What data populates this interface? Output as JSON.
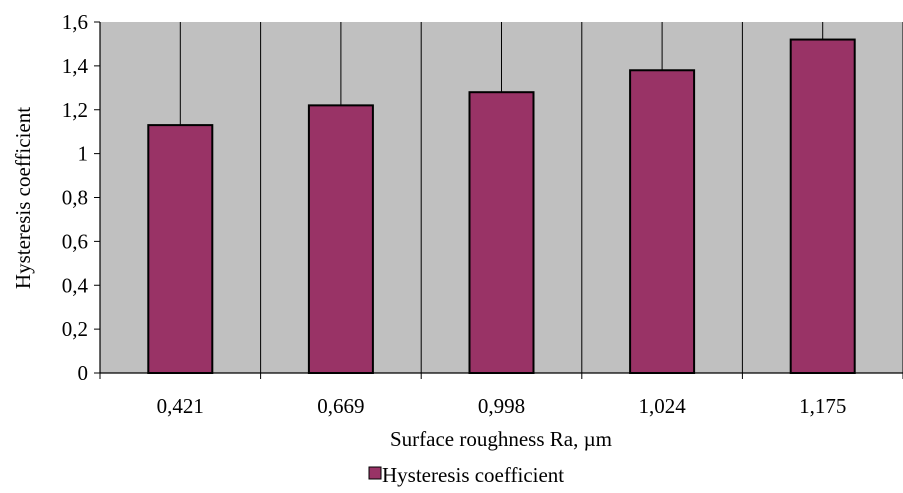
{
  "chart_data": {
    "type": "bar",
    "categories": [
      "0,421",
      "0,669",
      "0,998",
      "1,024",
      "1,175"
    ],
    "series": [
      {
        "name": "Hysteresis coefficient",
        "values": [
          1.13,
          1.22,
          1.28,
          1.38,
          1.52
        ]
      }
    ],
    "xlabel": "Surface roughness Ra, µm",
    "ylabel": "Hysteresis coefficient",
    "ylim": [
      0,
      1.6
    ],
    "yticks": [
      "0",
      "0,2",
      "0,4",
      "0,6",
      "0,8",
      "1",
      "1,2",
      "1,4",
      "1,6"
    ],
    "grid": "vertical",
    "legend_position": "bottom",
    "colors": {
      "bar_fill": "#993366",
      "bar_stroke": "#000000",
      "plot_background": "#c0c0c0",
      "grid_line": "#000000"
    }
  }
}
